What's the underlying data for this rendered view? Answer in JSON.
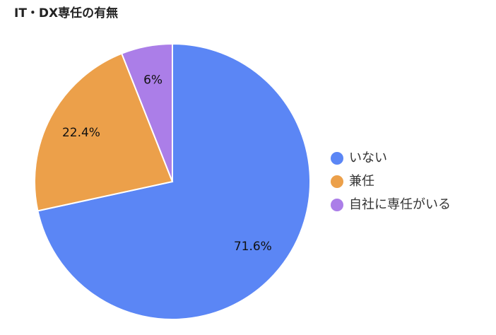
{
  "chart_data": {
    "type": "pie",
    "title": "IT・DX専任の有無",
    "categories": [
      "いない",
      "兼任",
      "自社に専任がいる"
    ],
    "values": [
      71.6,
      22.4,
      6
    ],
    "value_labels": [
      "71.6%",
      "22.4%",
      "6%"
    ],
    "colors": [
      "#5b86f5",
      "#eca04a",
      "#ab7ee8"
    ],
    "legend": "right"
  }
}
